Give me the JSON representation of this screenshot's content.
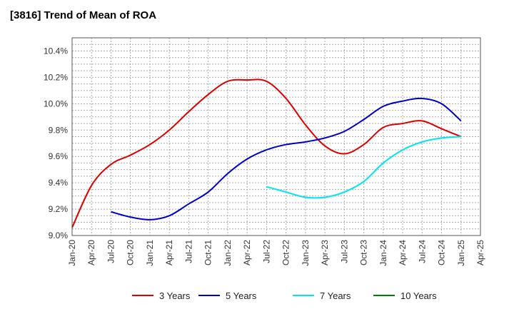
{
  "chart_data": {
    "type": "line",
    "title": "[3816]  Trend of Mean of ROA",
    "xlabel": "",
    "ylabel": "",
    "x_ticks": [
      "Jan-20",
      "Apr-20",
      "Jul-20",
      "Oct-20",
      "Jan-21",
      "Apr-21",
      "Jul-21",
      "Oct-21",
      "Jan-22",
      "Apr-22",
      "Jul-22",
      "Oct-22",
      "Jan-23",
      "Apr-23",
      "Jul-23",
      "Oct-23",
      "Jan-24",
      "Apr-24",
      "Jul-24",
      "Oct-24",
      "Jan-25",
      "Apr-25"
    ],
    "y_ticks": [
      "9.0%",
      "9.2%",
      "9.4%",
      "9.6%",
      "9.8%",
      "10.0%",
      "10.2%",
      "10.4%"
    ],
    "ylim": [
      9.0,
      10.5
    ],
    "grid": true,
    "legend_position": "bottom",
    "series": [
      {
        "name": "3 Years",
        "color": "#dd0000",
        "points": [
          [
            "Jan-20",
            9.06
          ],
          [
            "Apr-20",
            9.38
          ],
          [
            "Jul-20",
            9.54
          ],
          [
            "Oct-20",
            9.61
          ],
          [
            "Jan-21",
            9.69
          ],
          [
            "Apr-21",
            9.8
          ],
          [
            "Jul-21",
            9.94
          ],
          [
            "Oct-21",
            10.07
          ],
          [
            "Jan-22",
            10.17
          ],
          [
            "Apr-22",
            10.18
          ],
          [
            "Jul-22",
            10.17
          ],
          [
            "Oct-22",
            10.04
          ],
          [
            "Jan-23",
            9.84
          ],
          [
            "Apr-23",
            9.68
          ],
          [
            "Jul-23",
            9.62
          ],
          [
            "Oct-23",
            9.69
          ],
          [
            "Jan-24",
            9.82
          ],
          [
            "Apr-24",
            9.85
          ],
          [
            "Jul-24",
            9.87
          ],
          [
            "Oct-24",
            9.81
          ],
          [
            "Jan-25",
            9.75
          ]
        ]
      },
      {
        "name": "5 Years",
        "color": "#0000cc",
        "points": [
          [
            "Jul-20",
            9.18
          ],
          [
            "Oct-20",
            9.14
          ],
          [
            "Jan-21",
            9.12
          ],
          [
            "Apr-21",
            9.15
          ],
          [
            "Jul-21",
            9.24
          ],
          [
            "Oct-21",
            9.33
          ],
          [
            "Jan-22",
            9.47
          ],
          [
            "Apr-22",
            9.58
          ],
          [
            "Jul-22",
            9.65
          ],
          [
            "Oct-22",
            9.69
          ],
          [
            "Jan-23",
            9.71
          ],
          [
            "Apr-23",
            9.74
          ],
          [
            "Jul-23",
            9.79
          ],
          [
            "Oct-23",
            9.88
          ],
          [
            "Jan-24",
            9.98
          ],
          [
            "Apr-24",
            10.02
          ],
          [
            "Jul-24",
            10.04
          ],
          [
            "Oct-24",
            10.0
          ],
          [
            "Jan-25",
            9.87
          ]
        ]
      },
      {
        "name": "7 Years",
        "color": "#00e5ee",
        "points": [
          [
            "Jul-22",
            9.37
          ],
          [
            "Oct-22",
            9.33
          ],
          [
            "Jan-23",
            9.29
          ],
          [
            "Apr-23",
            9.29
          ],
          [
            "Jul-23",
            9.33
          ],
          [
            "Oct-23",
            9.41
          ],
          [
            "Jan-24",
            9.55
          ],
          [
            "Apr-24",
            9.65
          ],
          [
            "Jul-24",
            9.71
          ],
          [
            "Oct-24",
            9.74
          ],
          [
            "Jan-25",
            9.75
          ]
        ]
      },
      {
        "name": "10 Years",
        "color": "#008000",
        "points": []
      }
    ]
  }
}
